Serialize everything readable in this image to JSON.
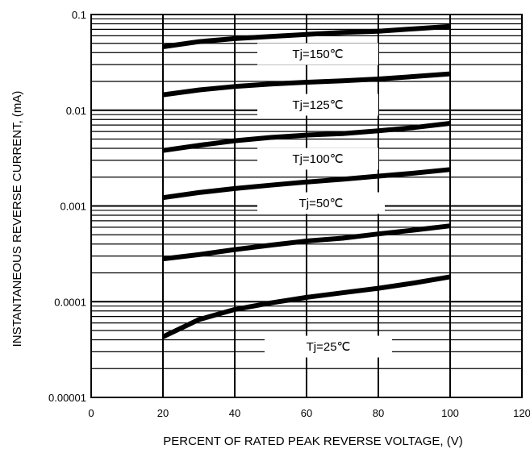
{
  "chart_data": {
    "type": "line",
    "xlabel": "PERCENT OF RATED PEAK REVERSE VOLTAGE, (V)",
    "ylabel": "INSTANTANEOUS REVERSE CURRENT, (mA)",
    "xlim": [
      0,
      120
    ],
    "ylim": [
      1e-05,
      0.1
    ],
    "yscale": "log",
    "grid": true,
    "x_ticks": [
      "0",
      "20",
      "40",
      "60",
      "80",
      "100",
      "120"
    ],
    "y_ticks": [
      "0.00001",
      "0.0001",
      "0.001",
      "0.01",
      "0.1"
    ],
    "series": [
      {
        "name": "Tj=150℃",
        "x": [
          20,
          30,
          40,
          50,
          60,
          70,
          80,
          90,
          100
        ],
        "y": [
          0.046,
          0.052,
          0.056,
          0.059,
          0.062,
          0.065,
          0.067,
          0.071,
          0.075
        ]
      },
      {
        "name": "Tj=125℃",
        "x": [
          20,
          30,
          40,
          50,
          60,
          70,
          80,
          90,
          100
        ],
        "y": [
          0.0145,
          0.0163,
          0.0177,
          0.0188,
          0.0196,
          0.0203,
          0.0212,
          0.0225,
          0.024
        ]
      },
      {
        "name": "Tj=100℃",
        "x": [
          20,
          30,
          40,
          50,
          60,
          70,
          80,
          90,
          100
        ],
        "y": [
          0.0038,
          0.0043,
          0.0048,
          0.0052,
          0.0055,
          0.0057,
          0.0061,
          0.0066,
          0.0073
        ]
      },
      {
        "name": "Tj=50℃",
        "x": [
          20,
          30,
          40,
          50,
          60,
          70,
          80,
          90,
          100
        ],
        "y": [
          0.00122,
          0.00138,
          0.00152,
          0.00165,
          0.00178,
          0.0019,
          0.00205,
          0.0022,
          0.0024
        ]
      },
      {
        "name": "",
        "x": [
          20,
          30,
          40,
          50,
          60,
          70,
          80,
          90,
          100
        ],
        "y": [
          0.00028,
          0.00031,
          0.00035,
          0.00039,
          0.00043,
          0.00046,
          0.00051,
          0.00056,
          0.00062
        ]
      },
      {
        "name": "Tj=25℃",
        "x": [
          20,
          30,
          40,
          50,
          60,
          70,
          80,
          90,
          100
        ],
        "y": [
          4.3e-05,
          6.5e-05,
          8.3e-05,
          9.7e-05,
          0.000111,
          0.000124,
          0.000138,
          0.000157,
          0.000182
        ]
      }
    ]
  }
}
